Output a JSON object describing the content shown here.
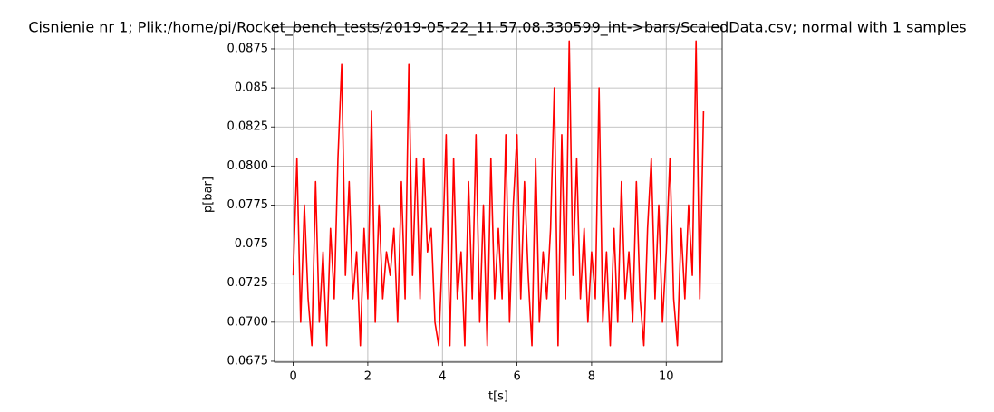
{
  "chart_data": {
    "type": "line",
    "title": "Cisnienie nr 1; Plik:/home/pi/Rocket_bench_tests/2019-05-22_11.57.08.330599_int->bars/ScaledData.csv; normal with 1 samples",
    "x_label": "t[s]",
    "y_label": "p[bar]",
    "color": "#ff0000",
    "grid": true,
    "xlim": [
      -0.5,
      11.5
    ],
    "ylim": [
      0.06744,
      0.08889
    ],
    "xticks": [
      0,
      2,
      4,
      6,
      8,
      10
    ],
    "yticks": [
      0.0675,
      {
        "value": 0.07,
        "label": "0.0700"
      },
      0.0725,
      0.075,
      0.0775,
      {
        "value": 0.08,
        "label": "0.0800"
      },
      0.0825,
      0.085,
      0.0875
    ],
    "x": [
      0,
      0.1,
      0.2,
      0.3,
      0.4,
      0.5,
      0.6,
      0.7,
      0.8,
      0.9,
      1,
      1.1,
      1.2,
      1.3,
      1.4,
      1.5,
      1.6,
      1.7,
      1.8,
      1.9,
      2,
      2.1,
      2.2,
      2.3,
      2.4,
      2.5,
      2.6,
      2.7,
      2.8,
      2.9,
      3,
      3.1,
      3.2,
      3.3,
      3.4,
      3.5,
      3.6,
      3.7,
      3.8,
      3.9,
      4,
      4.1,
      4.2,
      4.3,
      4.4,
      4.5,
      4.6,
      4.7,
      4.8,
      4.9,
      5,
      5.1,
      5.2,
      5.3,
      5.4,
      5.5,
      5.6,
      5.7,
      5.8,
      5.9,
      6,
      6.1,
      6.2,
      6.3,
      6.4,
      6.5,
      6.6,
      6.7,
      6.8,
      6.9,
      7,
      7.1,
      7.2,
      7.3,
      7.4,
      7.5,
      7.6,
      7.7,
      7.8,
      7.9,
      8,
      8.1,
      8.2,
      8.3,
      8.4,
      8.5,
      8.6,
      8.7,
      8.8,
      8.9,
      9,
      9.1,
      9.2,
      9.3,
      9.4,
      9.5,
      9.6,
      9.7,
      9.8,
      9.9,
      10,
      10.1,
      10.2,
      10.3,
      10.4,
      10.5,
      10.6,
      10.7,
      10.8,
      10.9,
      11
    ],
    "values": [
      0.073,
      0.0805,
      0.07,
      0.0775,
      0.0715,
      0.0685,
      0.079,
      0.07,
      0.0745,
      0.0685,
      0.076,
      0.0715,
      0.0805,
      0.0865,
      0.073,
      0.079,
      0.0715,
      0.0745,
      0.0685,
      0.076,
      0.0715,
      0.0835,
      0.07,
      0.0775,
      0.0715,
      0.0745,
      0.073,
      0.076,
      0.07,
      0.079,
      0.0715,
      0.0865,
      0.073,
      0.0805,
      0.0715,
      0.0805,
      0.0745,
      0.076,
      0.07,
      0.0685,
      0.0745,
      0.082,
      0.0685,
      0.0805,
      0.0715,
      0.0745,
      0.0685,
      0.079,
      0.0715,
      0.082,
      0.07,
      0.0775,
      0.0685,
      0.0805,
      0.0715,
      0.076,
      0.0715,
      0.082,
      0.07,
      0.0775,
      0.082,
      0.0715,
      0.079,
      0.073,
      0.0685,
      0.0805,
      0.07,
      0.0745,
      0.0715,
      0.076,
      0.085,
      0.0685,
      0.082,
      0.0715,
      0.088,
      0.073,
      0.0805,
      0.0715,
      0.076,
      0.07,
      0.0745,
      0.0715,
      0.085,
      0.07,
      0.0745,
      0.0685,
      0.076,
      0.07,
      0.079,
      0.0715,
      0.0745,
      0.07,
      0.079,
      0.0715,
      0.0685,
      0.076,
      0.0805,
      0.0715,
      0.0775,
      0.07,
      0.0745,
      0.0805,
      0.0715,
      0.0685,
      0.076,
      0.0715,
      0.0775,
      0.073,
      0.088,
      0.0715,
      0.0835
    ]
  }
}
